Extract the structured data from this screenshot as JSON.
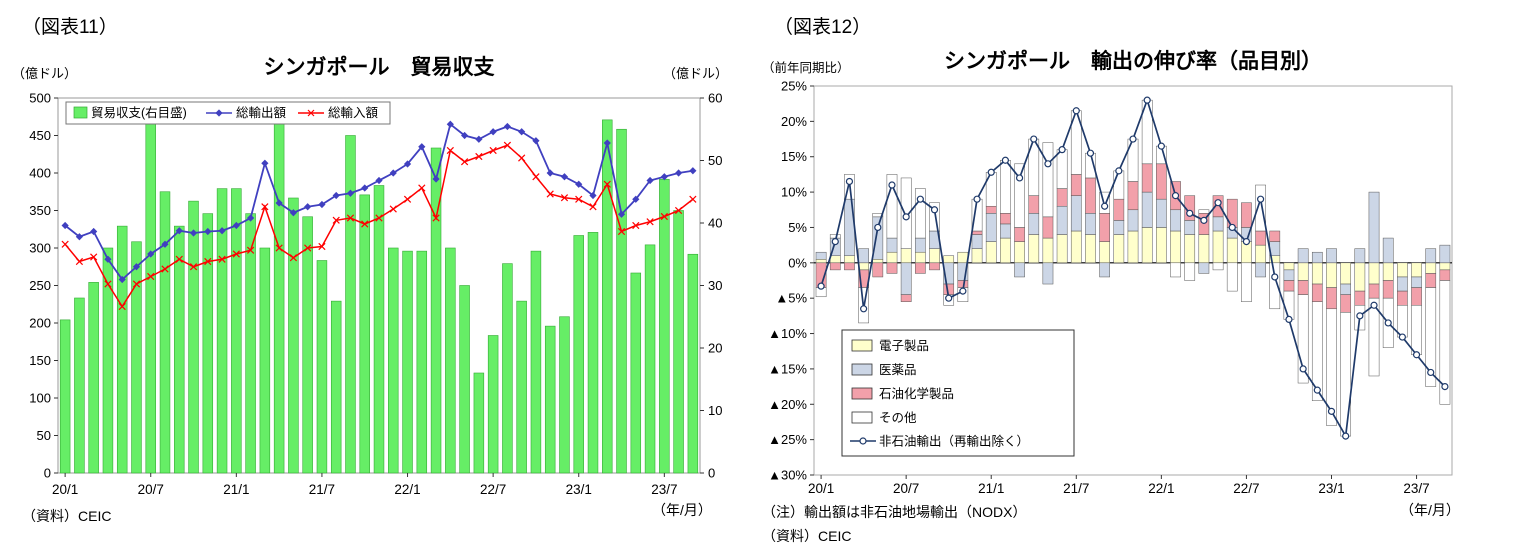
{
  "left_panel": {
    "figure_label": "（図表11）",
    "source": "（資料）CEIC",
    "axis_note": "（年/月）"
  },
  "right_panel": {
    "figure_label": "（図表12）",
    "note1": "（注）輸出額は非石油地場輸出（NODX）",
    "note2": "（資料）CEIC",
    "axis_note": "（年/月）"
  },
  "chart_data": [
    {
      "type": "bar",
      "title": "シンガポール　貿易収支",
      "left_axis": {
        "unit": "（億ドル）",
        "min": 0,
        "max": 500,
        "step": 50
      },
      "right_axis": {
        "unit": "（億ドル）",
        "min": 0,
        "max": 60,
        "step": 10
      },
      "x_tick_labels": [
        "20/1",
        "20/7",
        "21/1",
        "21/7",
        "22/1",
        "22/7",
        "23/1",
        "23/7"
      ],
      "x_tick_indices": [
        0,
        6,
        12,
        18,
        24,
        30,
        36,
        42
      ],
      "months": [
        "20/1",
        "20/2",
        "20/3",
        "20/4",
        "20/5",
        "20/6",
        "20/7",
        "20/8",
        "20/9",
        "20/10",
        "20/11",
        "20/12",
        "21/1",
        "21/2",
        "21/3",
        "21/4",
        "21/5",
        "21/6",
        "21/7",
        "21/8",
        "21/9",
        "21/10",
        "21/11",
        "21/12",
        "22/1",
        "22/2",
        "22/3",
        "22/4",
        "22/5",
        "22/6",
        "22/7",
        "22/8",
        "22/9",
        "22/10",
        "22/11",
        "22/12",
        "23/1",
        "23/2",
        "23/3",
        "23/4",
        "23/5",
        "23/6",
        "23/7",
        "23/8",
        "23/9"
      ],
      "series": [
        {
          "name": "貿易収支(右目盛)",
          "type": "bar",
          "axis": "right",
          "color": "#66ee66",
          "border": "#33aa33",
          "values": [
            24.5,
            28,
            30.5,
            36,
            39.5,
            37,
            57.5,
            45,
            39.5,
            43.5,
            41.5,
            45.5,
            45.5,
            41.5,
            36,
            57.5,
            44,
            41,
            34,
            27.5,
            54,
            44.5,
            46,
            36,
            35.5,
            35.5,
            52,
            36,
            30,
            16,
            22,
            33.5,
            27.5,
            35.5,
            23.5,
            25,
            38,
            38.5,
            56.5,
            55,
            32,
            36.5,
            47,
            42,
            35
          ]
        },
        {
          "name": "総輸出額",
          "type": "line",
          "axis": "left",
          "color": "#4040c0",
          "marker": "diamond",
          "values": [
            330,
            315,
            322,
            285,
            258,
            275,
            292,
            305,
            323,
            320,
            322,
            323,
            330,
            340,
            413,
            360,
            347,
            355,
            358,
            370,
            373,
            380,
            390,
            400,
            412,
            435,
            392,
            465,
            450,
            445,
            455,
            462,
            455,
            443,
            400,
            395,
            385,
            370,
            440,
            345,
            365,
            390,
            395,
            400,
            403
          ]
        },
        {
          "name": "総輸入額",
          "type": "line",
          "axis": "left",
          "color": "#ff0000",
          "marker": "x",
          "values": [
            305,
            282,
            288,
            252,
            222,
            252,
            262,
            272,
            285,
            275,
            282,
            285,
            292,
            297,
            355,
            300,
            287,
            300,
            302,
            337,
            340,
            332,
            340,
            352,
            365,
            380,
            340,
            430,
            415,
            422,
            430,
            437,
            420,
            395,
            372,
            367,
            365,
            355,
            385,
            322,
            330,
            335,
            342,
            350,
            365
          ]
        }
      ]
    },
    {
      "type": "bar",
      "subtype": "stacked-bar+line",
      "title": "シンガポール　輸出の伸び率（品目別）",
      "y_axis": {
        "unit": "（前年同期比）",
        "min": -30,
        "max": 25,
        "step": 5,
        "negative_prefix": "▲"
      },
      "x_tick_labels": [
        "20/1",
        "20/7",
        "21/1",
        "21/7",
        "22/1",
        "22/7",
        "23/1",
        "23/7"
      ],
      "x_tick_indices": [
        0,
        6,
        12,
        18,
        24,
        30,
        36,
        42
      ],
      "months": [
        "20/1",
        "20/2",
        "20/3",
        "20/4",
        "20/5",
        "20/6",
        "20/7",
        "20/8",
        "20/9",
        "20/10",
        "20/11",
        "20/12",
        "21/1",
        "21/2",
        "21/3",
        "21/4",
        "21/5",
        "21/6",
        "21/7",
        "21/8",
        "21/9",
        "21/10",
        "21/11",
        "21/12",
        "22/1",
        "22/2",
        "22/3",
        "22/4",
        "22/5",
        "22/6",
        "22/7",
        "22/8",
        "22/9",
        "22/10",
        "22/11",
        "22/12",
        "23/1",
        "23/2",
        "23/3",
        "23/4",
        "23/5",
        "23/6",
        "23/7",
        "23/8",
        "23/9"
      ],
      "bar_series": [
        {
          "name": "電子製品",
          "color": "#ffffcc",
          "values": [
            0.5,
            1,
            1,
            -1,
            0.5,
            1.5,
            2,
            1.5,
            2,
            1,
            1.5,
            2,
            3,
            3.5,
            3,
            4,
            3.5,
            4,
            4.5,
            4,
            3,
            4,
            4.5,
            5,
            5,
            4.5,
            4,
            4,
            4.5,
            3.5,
            3,
            2.5,
            1,
            -1,
            -2.5,
            -3,
            -3.5,
            -3,
            -4,
            -3,
            -2.5,
            -2,
            -2,
            -1.5,
            -1
          ]
        },
        {
          "name": "医薬品",
          "color": "#ccd6e6",
          "values": [
            1,
            2.5,
            8,
            2,
            6,
            2,
            -4.5,
            2,
            2.5,
            -3,
            -2.5,
            2,
            4,
            2,
            -2,
            3,
            -3,
            4,
            5,
            3,
            -2,
            2,
            3,
            5,
            4,
            3,
            2,
            -1.5,
            2,
            1.5,
            2,
            -2,
            2,
            -1.5,
            2,
            1.5,
            2,
            -1.5,
            2,
            10,
            3.5,
            -2,
            -1.5,
            2,
            2.5
          ]
        },
        {
          "name": "石油化学製品",
          "color": "#f2a0aa",
          "values": [
            -3.5,
            -1,
            -1,
            -2.5,
            -2,
            -1.5,
            -1,
            -1.5,
            -1,
            -1.5,
            -1,
            0.5,
            1,
            1.5,
            2,
            2.5,
            3,
            2.5,
            3,
            5,
            4,
            3,
            4,
            4,
            5,
            4,
            3.5,
            3,
            3,
            4,
            3.5,
            2,
            1.5,
            -1.5,
            -2,
            -2.5,
            -3,
            -2.5,
            -2,
            -2,
            -2.5,
            -2,
            -2.5,
            -2,
            -1.5
          ]
        },
        {
          "name": "その他",
          "color": "#ffffff",
          "values": [
            -1.3,
            0.5,
            3.5,
            -5,
            0.5,
            9,
            10,
            7,
            4,
            -1.5,
            -2,
            4.5,
            4.8,
            7.5,
            9,
            8,
            10.5,
            5.5,
            9,
            3.5,
            3,
            4,
            6,
            9,
            2.5,
            -2,
            -2.5,
            0.5,
            -1,
            -4,
            -5.5,
            6.5,
            -6.5,
            -4,
            -12.5,
            -14,
            -16.5,
            -17.5,
            -3.5,
            -11,
            -7,
            -4.5,
            -7,
            -14,
            -17.5
          ]
        }
      ],
      "line_series": {
        "name": "非石油輸出（再輸出除く）",
        "color": "#1f3a6a",
        "marker": "circle",
        "values": [
          -3.3,
          3,
          11.5,
          -6.5,
          5,
          11,
          6.5,
          9,
          7.5,
          -5,
          -4,
          9,
          12.8,
          14.5,
          12,
          17.5,
          14,
          16,
          21.5,
          15.5,
          8,
          13,
          17.5,
          23,
          16.5,
          9.5,
          7,
          6,
          8.5,
          5,
          3,
          9,
          -2,
          -8,
          -15,
          -18,
          -21,
          -24.5,
          -7.5,
          -6,
          -8.5,
          -10.5,
          -13,
          -15.5,
          -17.5
        ]
      }
    }
  ]
}
